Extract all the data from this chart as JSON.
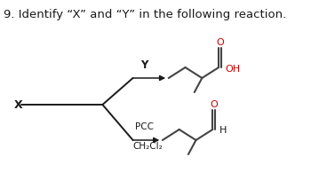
{
  "title": "9. Identify “X” and “Y” in the following reaction.",
  "title_fontsize": 9.5,
  "bg_color": "#ffffff",
  "text_color": "#1a1a1a",
  "red_color": "#cc0000",
  "mol_color": "#444444",
  "X_label": "X",
  "Y_label": "Y",
  "PCC_label": "PCC",
  "CH2Cl2_label": "CH₂Cl₂",
  "OH_label": "OH",
  "H_label": "H",
  "O_label": "O"
}
